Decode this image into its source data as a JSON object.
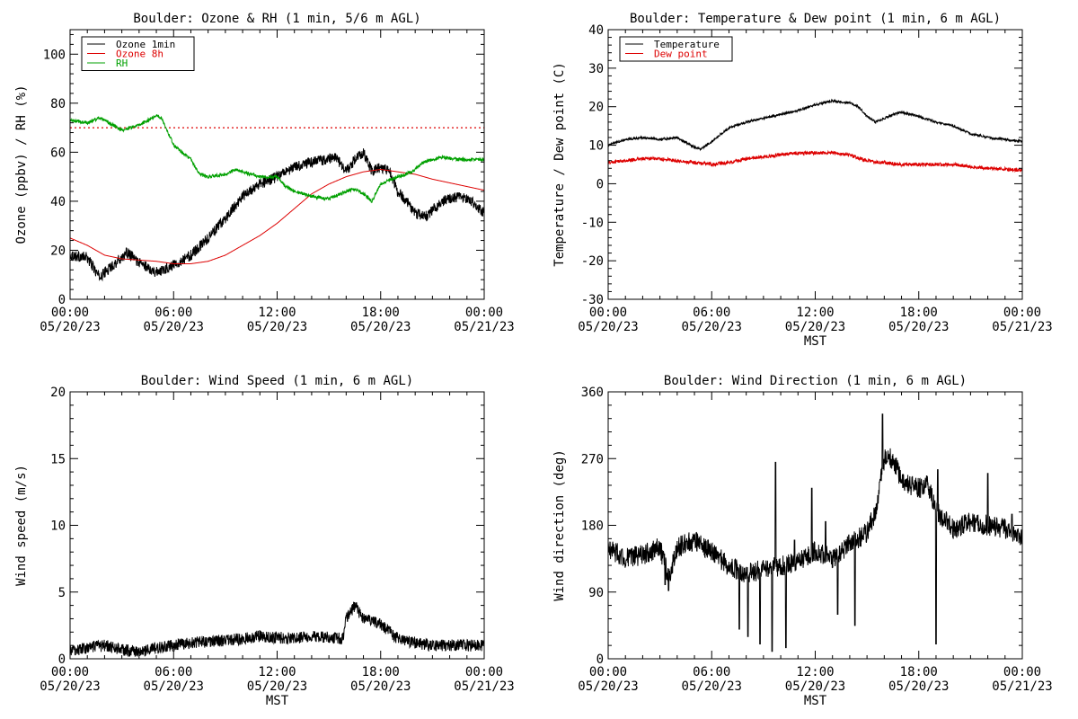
{
  "chart_data": [
    {
      "type": "line",
      "title": "Boulder: Ozone & RH (1 min, 5/6 m AGL)",
      "ylabel": "Ozone (ppbv) / RH (%)",
      "xlabel": "",
      "xlim": [
        0,
        24
      ],
      "ylim": [
        0,
        110
      ],
      "yticks": [
        0,
        20,
        40,
        60,
        80,
        100
      ],
      "xticks": [
        {
          "v": 0,
          "l1": "00:00",
          "l2": "05/20/23"
        },
        {
          "v": 6,
          "l1": "06:00",
          "l2": "05/20/23"
        },
        {
          "v": 12,
          "l1": "12:00",
          "l2": "05/20/23"
        },
        {
          "v": 18,
          "l1": "18:00",
          "l2": "05/20/23"
        },
        {
          "v": 24,
          "l1": "00:00",
          "l2": "05/21/23"
        }
      ],
      "legend": "top-left",
      "hline": {
        "value": 70,
        "color": "#dd0000",
        "style": "dotted"
      },
      "series": [
        {
          "name": "Ozone 1min",
          "color": "#000000",
          "noise": 2.2,
          "points": [
            [
              0,
              18
            ],
            [
              1,
              17
            ],
            [
              1.7,
              9
            ],
            [
              2.5,
              14
            ],
            [
              3.3,
              19
            ],
            [
              4,
              15
            ],
            [
              5,
              11
            ],
            [
              6,
              14
            ],
            [
              7,
              18
            ],
            [
              8,
              25
            ],
            [
              9,
              33
            ],
            [
              10,
              42
            ],
            [
              11,
              47
            ],
            [
              12,
              50
            ],
            [
              13,
              54
            ],
            [
              14,
              56
            ],
            [
              14.8,
              57
            ],
            [
              15.4,
              58
            ],
            [
              16,
              52
            ],
            [
              16.5,
              57
            ],
            [
              17,
              60
            ],
            [
              17.5,
              52
            ],
            [
              18,
              54
            ],
            [
              18.5,
              52
            ],
            [
              19,
              44
            ],
            [
              19.5,
              40
            ],
            [
              20,
              35
            ],
            [
              20.7,
              34
            ],
            [
              21.5,
              40
            ],
            [
              22.5,
              42
            ],
            [
              23.3,
              40
            ],
            [
              24,
              35
            ]
          ]
        },
        {
          "name": "Ozone 8h",
          "color": "#dd0000",
          "noise": 0,
          "points": [
            [
              0,
              25
            ],
            [
              1,
              22
            ],
            [
              2,
              18
            ],
            [
              3,
              16.5
            ],
            [
              4,
              16
            ],
            [
              5,
              15.5
            ],
            [
              6,
              14.5
            ],
            [
              7,
              14.5
            ],
            [
              8,
              15.5
            ],
            [
              9,
              18
            ],
            [
              10,
              22
            ],
            [
              11,
              26
            ],
            [
              12,
              31
            ],
            [
              13,
              37
            ],
            [
              14,
              43
            ],
            [
              15,
              47
            ],
            [
              16,
              50
            ],
            [
              17,
              52
            ],
            [
              18,
              53
            ],
            [
              19,
              52
            ],
            [
              20,
              51
            ],
            [
              21,
              49
            ],
            [
              22,
              47.5
            ],
            [
              23,
              46
            ],
            [
              24,
              44.5
            ]
          ]
        },
        {
          "name": "RH",
          "color": "#00a000",
          "noise": 0.7,
          "points": [
            [
              0,
              73
            ],
            [
              1,
              72
            ],
            [
              1.7,
              74
            ],
            [
              2.5,
              71
            ],
            [
              3,
              69
            ],
            [
              4,
              71
            ],
            [
              5,
              75
            ],
            [
              5.3,
              74
            ],
            [
              6,
              63
            ],
            [
              7,
              57
            ],
            [
              7.5,
              51
            ],
            [
              8,
              50
            ],
            [
              9,
              51
            ],
            [
              9.6,
              53
            ],
            [
              10,
              52
            ],
            [
              11,
              50
            ],
            [
              12,
              50
            ],
            [
              12.5,
              46
            ],
            [
              13,
              44
            ],
            [
              14,
              42
            ],
            [
              15,
              41
            ],
            [
              16,
              44
            ],
            [
              16.5,
              45
            ],
            [
              17,
              43
            ],
            [
              17.5,
              40
            ],
            [
              18,
              47
            ],
            [
              19,
              50
            ],
            [
              19.8,
              52
            ],
            [
              20.5,
              56
            ],
            [
              21.5,
              58
            ],
            [
              22.5,
              57
            ],
            [
              23.5,
              57
            ],
            [
              24,
              57
            ]
          ]
        }
      ]
    },
    {
      "type": "line",
      "title": "Boulder: Temperature & Dew point (1 min, 6 m AGL)",
      "ylabel": "Temperature / Dew point (C)",
      "xlabel": "MST",
      "xlim": [
        0,
        24
      ],
      "ylim": [
        -30,
        40
      ],
      "yticks": [
        -30,
        -20,
        -10,
        0,
        10,
        20,
        30,
        40
      ],
      "xticks": [
        {
          "v": 0,
          "l1": "00:00",
          "l2": "05/20/23"
        },
        {
          "v": 6,
          "l1": "06:00",
          "l2": "05/20/23"
        },
        {
          "v": 12,
          "l1": "12:00",
          "l2": "05/20/23"
        },
        {
          "v": 18,
          "l1": "18:00",
          "l2": "05/20/23"
        },
        {
          "v": 24,
          "l1": "00:00",
          "l2": "05/21/23"
        }
      ],
      "legend": "top-left",
      "series": [
        {
          "name": "Temperature",
          "color": "#000000",
          "noise": 0.3,
          "points": [
            [
              0,
              10
            ],
            [
              1,
              11.5
            ],
            [
              2,
              12
            ],
            [
              3,
              11.5
            ],
            [
              4,
              12
            ],
            [
              5,
              9.5
            ],
            [
              5.4,
              9
            ],
            [
              6,
              11
            ],
            [
              7,
              14.5
            ],
            [
              8,
              16
            ],
            [
              9,
              17
            ],
            [
              10,
              18
            ],
            [
              11,
              19
            ],
            [
              12,
              20.5
            ],
            [
              13,
              21.5
            ],
            [
              14,
              21
            ],
            [
              14.5,
              20
            ],
            [
              15,
              17.5
            ],
            [
              15.5,
              16
            ],
            [
              16,
              17
            ],
            [
              16.5,
              18
            ],
            [
              17,
              18.5
            ],
            [
              18,
              17.5
            ],
            [
              19,
              16
            ],
            [
              20,
              15
            ],
            [
              21,
              13
            ],
            [
              22,
              12
            ],
            [
              23,
              11.5
            ],
            [
              24,
              11
            ]
          ]
        },
        {
          "name": "Dew point",
          "color": "#dd0000",
          "noise": 0.45,
          "points": [
            [
              0,
              5.5
            ],
            [
              1,
              6
            ],
            [
              2,
              6.5
            ],
            [
              3,
              6.5
            ],
            [
              4,
              6
            ],
            [
              5,
              5.5
            ],
            [
              6,
              5
            ],
            [
              7,
              5.5
            ],
            [
              8,
              6.5
            ],
            [
              9,
              7
            ],
            [
              10,
              7.5
            ],
            [
              11,
              8
            ],
            [
              12,
              8
            ],
            [
              13,
              8
            ],
            [
              14,
              7.5
            ],
            [
              14.6,
              6.5
            ],
            [
              15,
              6
            ],
            [
              16,
              5.5
            ],
            [
              17,
              5
            ],
            [
              18,
              5
            ],
            [
              19,
              5
            ],
            [
              20,
              5
            ],
            [
              21,
              4.5
            ],
            [
              22,
              4
            ],
            [
              23,
              3.8
            ],
            [
              24,
              3.5
            ]
          ]
        }
      ]
    },
    {
      "type": "line",
      "title": "Boulder: Wind Speed (1 min, 6 m AGL)",
      "ylabel": "Wind speed (m/s)",
      "xlabel": "MST",
      "xlim": [
        0,
        24
      ],
      "ylim": [
        0,
        20
      ],
      "yticks": [
        0,
        5,
        10,
        15,
        20
      ],
      "xticks": [
        {
          "v": 0,
          "l1": "00:00",
          "l2": "05/20/23"
        },
        {
          "v": 6,
          "l1": "06:00",
          "l2": "05/20/23"
        },
        {
          "v": 12,
          "l1": "12:00",
          "l2": "05/20/23"
        },
        {
          "v": 18,
          "l1": "18:00",
          "l2": "05/20/23"
        },
        {
          "v": 24,
          "l1": "00:00",
          "l2": "05/21/23"
        }
      ],
      "series": [
        {
          "name": "Wind speed",
          "color": "#000000",
          "noise": 0.45,
          "points": [
            [
              0,
              0.6
            ],
            [
              1,
              0.8
            ],
            [
              2,
              1
            ],
            [
              3,
              0.7
            ],
            [
              4,
              0.5
            ],
            [
              5,
              0.8
            ],
            [
              6,
              1
            ],
            [
              7,
              1.2
            ],
            [
              8,
              1.3
            ],
            [
              9,
              1.4
            ],
            [
              10,
              1.5
            ],
            [
              11,
              1.7
            ],
            [
              12,
              1.6
            ],
            [
              13,
              1.5
            ],
            [
              14,
              1.7
            ],
            [
              15,
              1.6
            ],
            [
              15.8,
              1.5
            ],
            [
              16,
              3
            ],
            [
              16.5,
              4
            ],
            [
              17,
              3
            ],
            [
              18,
              2.6
            ],
            [
              19,
              1.5
            ],
            [
              20,
              1.2
            ],
            [
              21,
              1
            ],
            [
              22,
              1
            ],
            [
              23,
              1
            ],
            [
              24,
              1
            ]
          ]
        }
      ]
    },
    {
      "type": "line",
      "title": "Boulder: Wind Direction (1 min, 6 m AGL)",
      "ylabel": "Wind direction (deg)",
      "xlabel": "MST",
      "xlim": [
        0,
        24
      ],
      "ylim": [
        0,
        360
      ],
      "yticks": [
        0,
        90,
        180,
        270,
        360
      ],
      "xticks": [
        {
          "v": 0,
          "l1": "00:00",
          "l2": "05/20/23"
        },
        {
          "v": 6,
          "l1": "06:00",
          "l2": "05/20/23"
        },
        {
          "v": 12,
          "l1": "12:00",
          "l2": "05/20/23"
        },
        {
          "v": 18,
          "l1": "18:00",
          "l2": "05/20/23"
        },
        {
          "v": 24,
          "l1": "00:00",
          "l2": "05/21/23"
        }
      ],
      "series": [
        {
          "name": "Wind direction",
          "color": "#000000",
          "noise": 14,
          "points": [
            [
              0,
              150
            ],
            [
              1,
              135
            ],
            [
              2,
              140
            ],
            [
              3,
              150
            ],
            [
              3.5,
              110
            ],
            [
              4,
              150
            ],
            [
              5,
              160
            ],
            [
              6,
              145
            ],
            [
              7,
              125
            ],
            [
              8,
              115
            ],
            [
              9,
              120
            ],
            [
              10,
              125
            ],
            [
              11,
              130
            ],
            [
              12,
              145
            ],
            [
              13,
              135
            ],
            [
              14,
              155
            ],
            [
              15,
              170
            ],
            [
              15.5,
              200
            ],
            [
              16,
              270
            ],
            [
              16.5,
              270
            ],
            [
              17,
              240
            ],
            [
              18,
              230
            ],
            [
              18.5,
              235
            ],
            [
              19,
              200
            ],
            [
              20,
              175
            ],
            [
              21,
              185
            ],
            [
              22,
              180
            ],
            [
              23,
              175
            ],
            [
              24,
              165
            ]
          ],
          "spikes": [
            [
              3.3,
              100
            ],
            [
              3.5,
              92
            ],
            [
              7.6,
              40
            ],
            [
              8.1,
              30
            ],
            [
              8.8,
              20
            ],
            [
              9.5,
              10
            ],
            [
              9.7,
              265
            ],
            [
              10.3,
              15
            ],
            [
              10.8,
              160
            ],
            [
              11.8,
              230
            ],
            [
              12.6,
              185
            ],
            [
              13.3,
              60
            ],
            [
              14.3,
              45
            ],
            [
              15.9,
              330
            ],
            [
              19,
              20
            ],
            [
              19.1,
              255
            ],
            [
              22,
              250
            ],
            [
              23.4,
              195
            ]
          ]
        }
      ]
    }
  ]
}
